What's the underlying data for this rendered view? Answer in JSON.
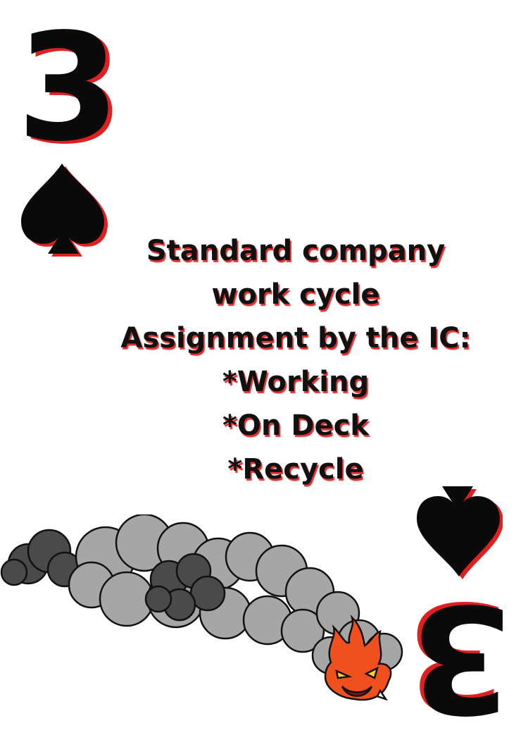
{
  "card": {
    "rank": "3",
    "suit_icon": "spade-icon",
    "lines": [
      "Standard company",
      "work cycle",
      "Assignment by the IC:",
      "*Working",
      "*On Deck",
      "*Recycle"
    ]
  },
  "colors": {
    "ink": "#0a0a0a",
    "shadow_red": "#e02020",
    "smoke_light": "#a6a6a6",
    "smoke_dark": "#4a4a4a",
    "flame": "#f0501e"
  }
}
